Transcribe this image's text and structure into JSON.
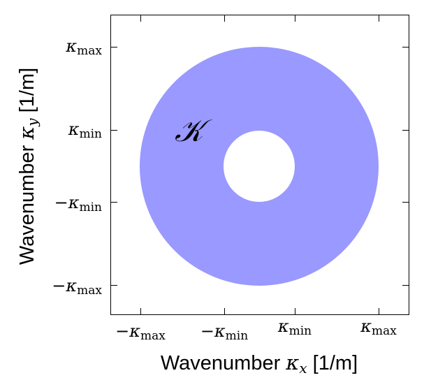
{
  "figure": {
    "x_axis_title_prefix": "Wavenumber ",
    "x_axis_title_symbol": "κ",
    "x_axis_title_subscript": "x",
    "x_axis_title_suffix": " [1/m]",
    "y_axis_title_prefix": "Wavenumber ",
    "y_axis_title_symbol": "κ",
    "y_axis_title_subscript": "y",
    "y_axis_title_suffix": " [1/m]",
    "region_label": "𝒦",
    "x_ticks": [
      {
        "sign": "−",
        "symbol": "κ",
        "subscript": "max"
      },
      {
        "sign": "−",
        "symbol": "κ",
        "subscript": "min"
      },
      {
        "sign": "",
        "symbol": "κ",
        "subscript": "min"
      },
      {
        "sign": "",
        "symbol": "κ",
        "subscript": "max"
      }
    ],
    "y_ticks": [
      {
        "sign": "",
        "symbol": "κ",
        "subscript": "max"
      },
      {
        "sign": "",
        "symbol": "κ",
        "subscript": "min"
      },
      {
        "sign": "−",
        "symbol": "κ",
        "subscript": "min"
      },
      {
        "sign": "−",
        "symbol": "κ",
        "subscript": "max"
      }
    ],
    "annulus_fill": "#9999ff",
    "hole_fill": "#ffffff",
    "frame_color": "#000000"
  }
}
